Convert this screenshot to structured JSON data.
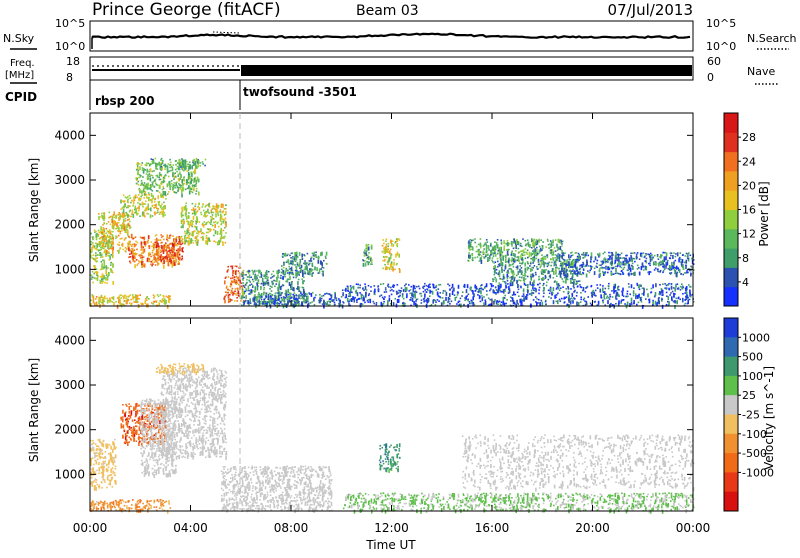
{
  "header": {
    "site": "Prince George (fitACF)",
    "beam": "Beam 03",
    "date": "07/Jul/2013"
  },
  "top_panels": {
    "nsky_label": "N.Sky",
    "nsky_ticks": [
      "10^5",
      "10^0"
    ],
    "nsearch_label": "N.Search",
    "nsearch_ticks": [
      "10^5",
      "10^0"
    ],
    "freq_label": "Freq.",
    "freq_unit": "[MHz]",
    "freq_ticks": [
      "18",
      "8"
    ],
    "nave_label": "Nave",
    "nave_ticks": [
      "60",
      "0"
    ],
    "cpid_label": "CPID",
    "cpid_segments": [
      {
        "name": "rbsp 200",
        "start_hour": 0,
        "end_hour": 6
      },
      {
        "name": "twofsound -3501",
        "start_hour": 6,
        "end_hour": 24
      }
    ]
  },
  "chart_data": [
    {
      "type": "heatmap",
      "panel": "power",
      "ylabel": "Slant Range [km]",
      "xlabel": "",
      "x_ticks": [
        "00:00",
        "04:00",
        "08:00",
        "12:00",
        "16:00",
        "20:00",
        "00:00"
      ],
      "x_range_hours": [
        0,
        24
      ],
      "y_ticks": [
        1000,
        2000,
        3000,
        4000
      ],
      "y_range_km": [
        180,
        4500
      ],
      "colorbar_label": "Power [dB]",
      "colorbar_ticks": [
        4,
        8,
        12,
        16,
        20,
        24,
        28
      ],
      "colorbar_range": [
        0,
        32
      ],
      "colorbar_colors": [
        "#1530ff",
        "#2b52b0",
        "#3f9e6a",
        "#5cb85c",
        "#8fcf3e",
        "#e8c020",
        "#f0a020",
        "#f07020",
        "#e03020",
        "#d81818"
      ],
      "regions": [
        {
          "t0": 0.0,
          "t1": 0.9,
          "r0": 700,
          "r1": 1900,
          "level": 14
        },
        {
          "t0": 0.3,
          "t1": 1.6,
          "r0": 1400,
          "r1": 2300,
          "level": 18
        },
        {
          "t0": 1.5,
          "t1": 3.6,
          "r0": 1100,
          "r1": 1800,
          "level": 22
        },
        {
          "t0": 2.6,
          "t1": 3.7,
          "r0": 1200,
          "r1": 1600,
          "level": 26
        },
        {
          "t0": 1.2,
          "t1": 3.0,
          "r0": 2200,
          "r1": 2700,
          "level": 16
        },
        {
          "t0": 1.8,
          "t1": 4.3,
          "r0": 2700,
          "r1": 3400,
          "level": 12
        },
        {
          "t0": 2.4,
          "t1": 4.6,
          "r0": 3300,
          "r1": 3500,
          "level": 10
        },
        {
          "t0": 3.6,
          "t1": 5.4,
          "r0": 1600,
          "r1": 2500,
          "level": 16
        },
        {
          "t0": 0.0,
          "t1": 3.2,
          "r0": 200,
          "r1": 450,
          "level": 18
        },
        {
          "t0": 5.3,
          "t1": 6.1,
          "r0": 300,
          "r1": 1100,
          "level": 24
        },
        {
          "t0": 6.0,
          "t1": 8.5,
          "r0": 200,
          "r1": 1000,
          "level": 8
        },
        {
          "t0": 6.5,
          "t1": 10.0,
          "r0": 200,
          "r1": 500,
          "level": 6
        },
        {
          "t0": 7.6,
          "t1": 9.4,
          "r0": 900,
          "r1": 1400,
          "level": 8
        },
        {
          "t0": 11.6,
          "t1": 12.3,
          "r0": 1000,
          "r1": 1700,
          "level": 16
        },
        {
          "t0": 10.8,
          "t1": 11.2,
          "r0": 1100,
          "r1": 1600,
          "level": 10
        },
        {
          "t0": 15.0,
          "t1": 18.8,
          "r0": 1200,
          "r1": 1700,
          "level": 10
        },
        {
          "t0": 16.0,
          "t1": 19.5,
          "r0": 700,
          "r1": 1200,
          "level": 8
        },
        {
          "t0": 18.5,
          "t1": 24.0,
          "r0": 900,
          "r1": 1400,
          "level": 6
        },
        {
          "t0": 10.0,
          "t1": 24.0,
          "r0": 200,
          "r1": 700,
          "level": 4
        }
      ]
    },
    {
      "type": "heatmap",
      "panel": "velocity",
      "ylabel": "Slant Range [km]",
      "xlabel": "Time UT",
      "x_ticks": [
        "00:00",
        "04:00",
        "08:00",
        "12:00",
        "16:00",
        "20:00",
        "00:00"
      ],
      "x_range_hours": [
        0,
        24
      ],
      "y_ticks": [
        1000,
        2000,
        3000,
        4000
      ],
      "y_range_km": [
        180,
        4500
      ],
      "colorbar_label": "Velocity [m s^-1]",
      "colorbar_ticks": [
        1000,
        500,
        100,
        25,
        -25,
        -100,
        -500,
        -1000
      ],
      "colorbar_colors": [
        "#1e3cd8",
        "#2f6ab0",
        "#3e9a6e",
        "#5ec04a",
        "#c8c8c8",
        "#f0c060",
        "#f09030",
        "#f06a18",
        "#e83818",
        "#d81010"
      ],
      "regions": [
        {
          "t0": 0.0,
          "t1": 1.0,
          "r0": 700,
          "r1": 1800,
          "level": -40
        },
        {
          "t0": 1.2,
          "t1": 3.0,
          "r0": 1700,
          "r1": 2600,
          "level": -800
        },
        {
          "t0": 2.0,
          "t1": 3.4,
          "r0": 1000,
          "r1": 2700,
          "level": 0
        },
        {
          "t0": 2.8,
          "t1": 5.4,
          "r0": 1400,
          "r1": 3400,
          "level": 0
        },
        {
          "t0": 2.6,
          "t1": 4.5,
          "r0": 3300,
          "r1": 3500,
          "level": -60
        },
        {
          "t0": 0.0,
          "t1": 3.2,
          "r0": 200,
          "r1": 450,
          "level": -300
        },
        {
          "t0": 5.2,
          "t1": 9.6,
          "r0": 200,
          "r1": 1200,
          "level": 0
        },
        {
          "t0": 11.5,
          "t1": 12.3,
          "r0": 1100,
          "r1": 1700,
          "level": 300
        },
        {
          "t0": 14.8,
          "t1": 24.0,
          "r0": 700,
          "r1": 1900,
          "level": 0
        },
        {
          "t0": 10.0,
          "t1": 24.0,
          "r0": 200,
          "r1": 600,
          "level": 30
        }
      ]
    }
  ]
}
